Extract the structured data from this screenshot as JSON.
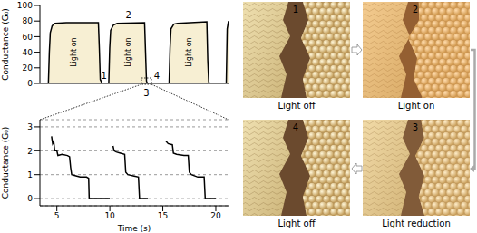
{
  "chart_data": [
    {
      "type": "line",
      "y_label": "Conductance (G₀)",
      "x": [
        0,
        4.5,
        5,
        5.5,
        6.5,
        8,
        14,
        31,
        31.5,
        32,
        33,
        36.5,
        37,
        37.5,
        39,
        41,
        55.5,
        56,
        56.5,
        57,
        68.5,
        69,
        69.5,
        71,
        73,
        88.5,
        89,
        89.5,
        90,
        98.8,
        99.3,
        100
      ],
      "values": [
        0,
        0,
        40,
        65,
        74,
        77,
        78,
        78,
        45,
        5,
        0,
        0,
        45,
        68,
        75,
        77,
        78,
        40,
        3,
        0,
        0,
        45,
        70,
        76,
        77,
        79,
        30,
        2,
        0,
        0,
        70,
        80
      ],
      "color": "#000000",
      "xlim": [
        0,
        100
      ],
      "ylim": [
        0,
        100
      ],
      "yticks": [
        0,
        20,
        40,
        60,
        80,
        100
      ],
      "tick_labels": "y",
      "annotations": [
        {
          "text": "Light on",
          "x": 18,
          "y": 40
        },
        {
          "text": "Light on",
          "x": 46.5,
          "y": 40
        },
        {
          "text": "Light on",
          "x": 79,
          "y": 40
        },
        {
          "text": "1",
          "x": 34,
          "y": 10
        },
        {
          "text": "2",
          "x": 47,
          "y": 88
        },
        {
          "text": "3",
          "x": 56.5,
          "y": -12
        },
        {
          "text": "4",
          "x": 62,
          "y": 10
        }
      ]
    },
    {
      "type": "line",
      "x_label": "Time (s)",
      "y_label": "Conductance (G₀)",
      "x": [
        4.5,
        4.6,
        4.7,
        4.8,
        5.0,
        5.1,
        5.5,
        6.0,
        6.2,
        6.3,
        6.4,
        6.8,
        7.2,
        7.8,
        8.0,
        8.05,
        10.0,
        10.15,
        10.3,
        10.4,
        10.6,
        11.0,
        11.4,
        11.5,
        11.7,
        12.2,
        12.7,
        12.8,
        13.6,
        14.5,
        15.3,
        15.5,
        15.9,
        16.0,
        16.3,
        17.0,
        17.4,
        17.5,
        17.7,
        18.3,
        18.9,
        19.0,
        20.0
      ],
      "values": [
        2.6,
        2.3,
        2.4,
        2.0,
        2.0,
        1.8,
        1.85,
        1.8,
        1.75,
        1.3,
        1.0,
        0.95,
        0.9,
        0.9,
        0.85,
        0,
        0,
        null,
        2.2,
        2.0,
        1.95,
        1.9,
        1.85,
        1.1,
        1.0,
        0.95,
        0.9,
        0,
        0,
        null,
        2.4,
        2.3,
        2.25,
        1.9,
        1.85,
        1.8,
        1.8,
        1.1,
        1.0,
        0.9,
        0.9,
        0,
        0
      ],
      "color": "#000000",
      "xlim": [
        3.4,
        21.2
      ],
      "xticks": [
        5,
        10,
        15,
        20
      ],
      "ylim": [
        -0.3,
        3.3
      ],
      "yticks": [
        0,
        1,
        2,
        3
      ],
      "grid": true
    }
  ],
  "panels": [
    {
      "number": "1",
      "caption": "Light off"
    },
    {
      "number": "2",
      "caption": "Light on"
    },
    {
      "number": "3",
      "caption": "Light reduction"
    },
    {
      "number": "4",
      "caption": "Light off"
    }
  ]
}
